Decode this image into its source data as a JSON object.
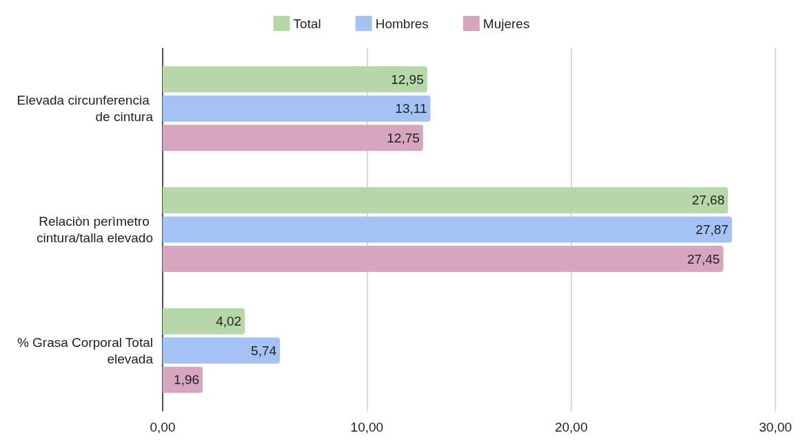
{
  "chart_data": {
    "type": "bar",
    "orientation": "horizontal",
    "categories": [
      "Elevada circunferencia de cintura",
      "Relaciòn perìmetro cintura/talla elevado",
      "% Grasa Corporal Total elevada"
    ],
    "series": [
      {
        "name": "Total",
        "color": "#b6d7a8",
        "values": [
          12.95,
          27.68,
          4.02
        ],
        "value_labels": [
          "12,95",
          "27,68",
          "4,02"
        ]
      },
      {
        "name": "Hombres",
        "color": "#a4c2f4",
        "values": [
          13.11,
          27.87,
          5.74
        ],
        "value_labels": [
          "13,11",
          "27,87",
          "5,74"
        ]
      },
      {
        "name": "Mujeres",
        "color": "#d5a6bd",
        "values": [
          12.75,
          27.45,
          1.96
        ],
        "value_labels": [
          "12,75",
          "27,45",
          "1,96"
        ]
      }
    ],
    "xlim": [
      0,
      30
    ],
    "xticks": [
      {
        "value": 0,
        "label": "0,00"
      },
      {
        "value": 10,
        "label": "10,00"
      },
      {
        "value": 20,
        "label": "20,00"
      },
      {
        "value": 30,
        "label": "30,00"
      }
    ],
    "grid": "x",
    "legend": "top"
  }
}
